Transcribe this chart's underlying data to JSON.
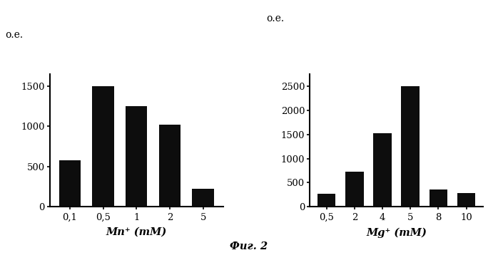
{
  "chart1": {
    "categories": [
      "0,1",
      "0,5",
      "1",
      "2",
      "5"
    ],
    "values": [
      580,
      1500,
      1250,
      1020,
      220
    ],
    "xlabel": "Mn⁺ (mM)",
    "ylabel": "о.е.",
    "ylim": [
      0,
      1650
    ],
    "yticks": [
      0,
      500,
      1000,
      1500
    ]
  },
  "chart2": {
    "categories": [
      "0,5",
      "2",
      "4",
      "5",
      "8",
      "10"
    ],
    "values": [
      270,
      720,
      1520,
      2500,
      350,
      290
    ],
    "xlabel": "Mg⁺ (mM)",
    "ylabel": "о.е.",
    "ylim": [
      0,
      2750
    ],
    "yticks": [
      0,
      500,
      1000,
      1500,
      2000,
      2500
    ]
  },
  "figure_label": "Фиг. 2",
  "bar_color": "#0d0d0d",
  "bg_color": "#ffffff",
  "bar_width": 0.65
}
